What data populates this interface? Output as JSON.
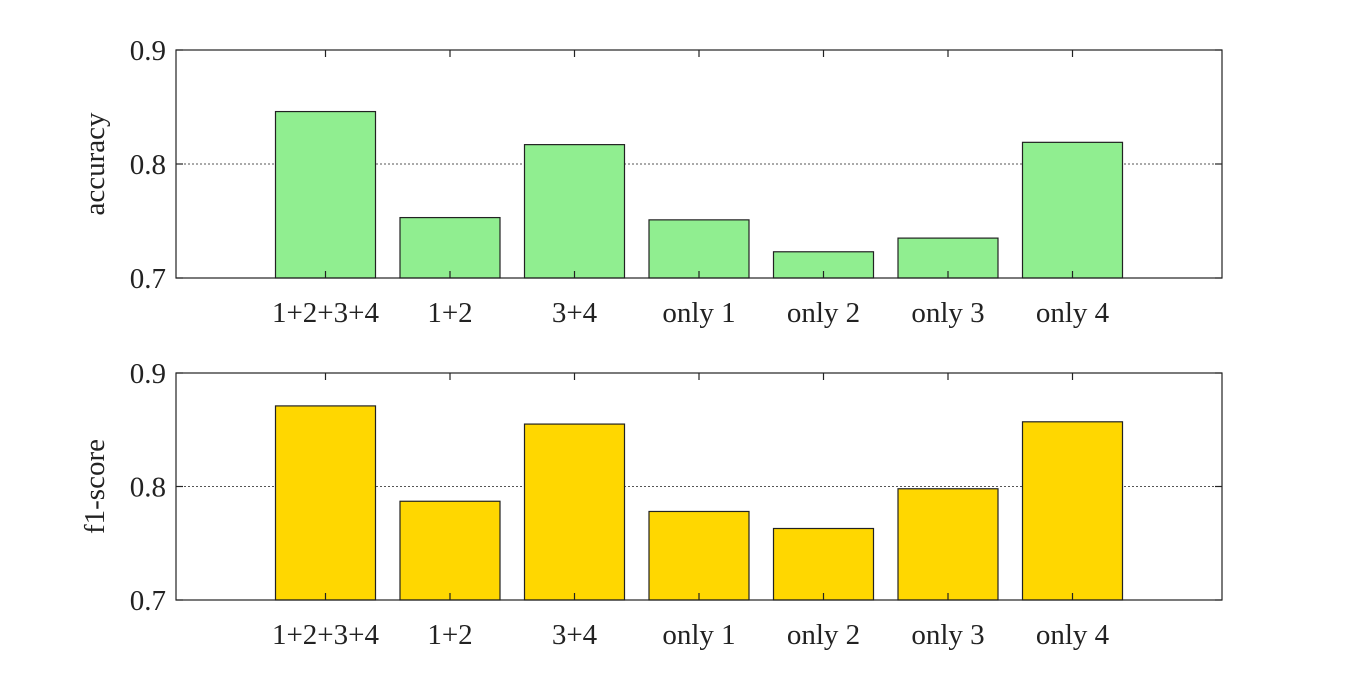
{
  "chart_data": [
    {
      "type": "bar",
      "categories": [
        "1+2+3+4",
        "1+2",
        "3+4",
        "only 1",
        "only 2",
        "only 3",
        "only 4"
      ],
      "values": [
        0.846,
        0.753,
        0.817,
        0.751,
        0.723,
        0.735,
        0.819
      ],
      "title": "",
      "xlabel": "",
      "ylabel": "accuracy",
      "ylim": [
        0.7,
        0.9
      ],
      "yticks": [
        "0.7",
        "0.8",
        "0.9"
      ],
      "ytick_values": [
        0.7,
        0.8,
        0.9
      ],
      "grid": true,
      "bar_color": "#90EE90"
    },
    {
      "type": "bar",
      "categories": [
        "1+2+3+4",
        "1+2",
        "3+4",
        "only 1",
        "only 2",
        "only 3",
        "only 4"
      ],
      "values": [
        0.871,
        0.787,
        0.855,
        0.778,
        0.763,
        0.798,
        0.857
      ],
      "title": "",
      "xlabel": "",
      "ylabel": "f1-score",
      "ylim": [
        0.7,
        0.9
      ],
      "yticks": [
        "0.7",
        "0.8",
        "0.9"
      ],
      "ytick_values": [
        0.7,
        0.8,
        0.9
      ],
      "grid": true,
      "bar_color": "#FFD700"
    }
  ]
}
